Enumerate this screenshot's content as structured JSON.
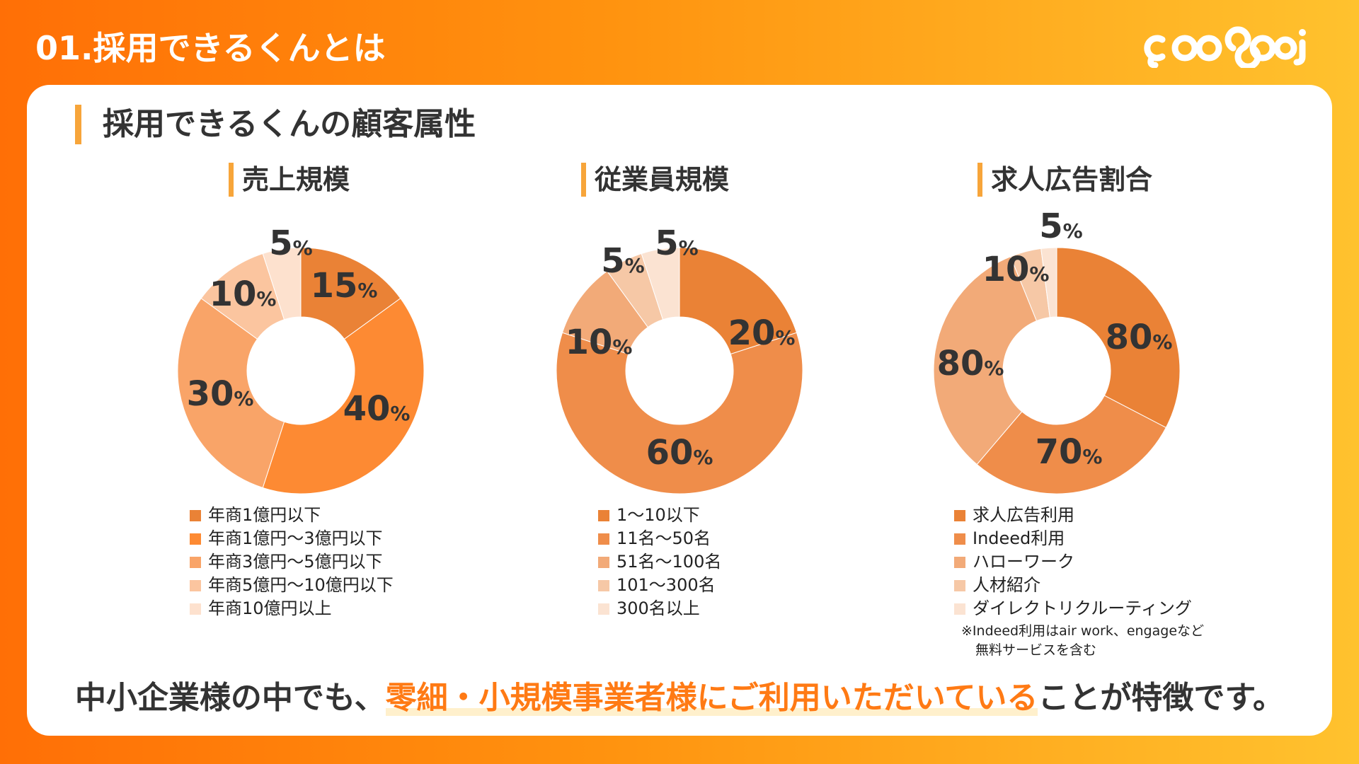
{
  "header": {
    "title": "01.採用できるくんとは",
    "logo_text": "goodooi"
  },
  "card": {
    "heading": "採用できるくんの顧客属性"
  },
  "chart_data": [
    {
      "type": "pie",
      "title": "売上規模",
      "categories": [
        "年商1億円以下",
        "年商1億円〜3億円以下",
        "年商3億円〜5億円以下",
        "年商5億円〜10億円以下",
        "年商10億円以上"
      ],
      "values": [
        15,
        40,
        30,
        10,
        5
      ],
      "labels": [
        "15",
        "40",
        "30",
        "10",
        "5"
      ],
      "colors": [
        "#ea8236",
        "#fd8a33",
        "#f9a468",
        "#fbc59f",
        "#fde1ce"
      ]
    },
    {
      "type": "pie",
      "title": "従業員規模",
      "categories": [
        "1〜10以下",
        "11名〜50名",
        "51名〜100名",
        "101〜300名",
        "300名以上"
      ],
      "values": [
        20,
        60,
        10,
        5,
        5
      ],
      "labels": [
        "20",
        "60",
        "10",
        "5",
        "5"
      ],
      "colors": [
        "#ea8236",
        "#ef8d4a",
        "#f2aa78",
        "#f6c8a6",
        "#fbe3d2"
      ]
    },
    {
      "type": "pie",
      "title": "求人広告割合",
      "categories": [
        "求人広告利用",
        "Indeed利用",
        "ハローワーク",
        "人材紹介",
        "ダイレクトリクルーティング"
      ],
      "values": [
        80,
        70,
        80,
        10,
        5
      ],
      "labels": [
        "80",
        "70",
        "80",
        "10",
        "5"
      ],
      "colors": [
        "#ea8236",
        "#ef8d4a",
        "#f2aa78",
        "#f6c8a6",
        "#fbe3d2"
      ],
      "note": [
        "※Indeed利用はair work、engageなど",
        "無料サービスを含む"
      ]
    }
  ],
  "percent_sign": "%",
  "message": {
    "before": "中小企業様の中でも、",
    "highlight": "零細・小規模事業者様にご利用いただいている",
    "after": "ことが特徴です。"
  }
}
